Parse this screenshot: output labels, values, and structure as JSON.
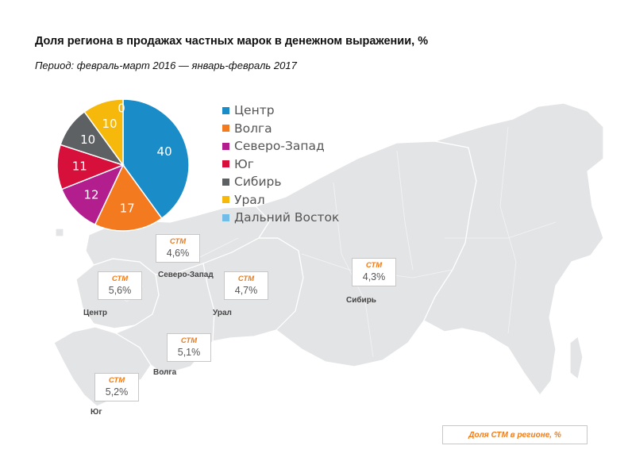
{
  "title": "Доля региона в продажах частных марок в денежном выражении, %",
  "subtitle": "Период: февраль-март 2016 — январь-февраль 2017",
  "chart_data": {
    "type": "pie",
    "categories": [
      "Центр",
      "Волга",
      "Северо-Запад",
      "Юг",
      "Сибирь",
      "Урал",
      "Дальний Восток"
    ],
    "values": [
      40,
      17,
      12,
      11,
      10,
      10,
      0
    ],
    "colors": [
      "#1a8cc8",
      "#f47a20",
      "#b31e8e",
      "#d6103a",
      "#5e6163",
      "#f6b80b",
      "#71bde8"
    ],
    "label_color": "#ffffff",
    "legend_position": "right"
  },
  "stm": {
    "label": "СТМ",
    "regions": [
      {
        "name": "Северо-Запад",
        "value": "4,6%"
      },
      {
        "name": "Центр",
        "value": "5,6%"
      },
      {
        "name": "Урал",
        "value": "4,7%"
      },
      {
        "name": "Сибирь",
        "value": "4,3%"
      },
      {
        "name": "Волга",
        "value": "5,1%"
      },
      {
        "name": "Юг",
        "value": "5,2%"
      }
    ]
  },
  "footer_note": "Доля СТМ в регионе, %"
}
